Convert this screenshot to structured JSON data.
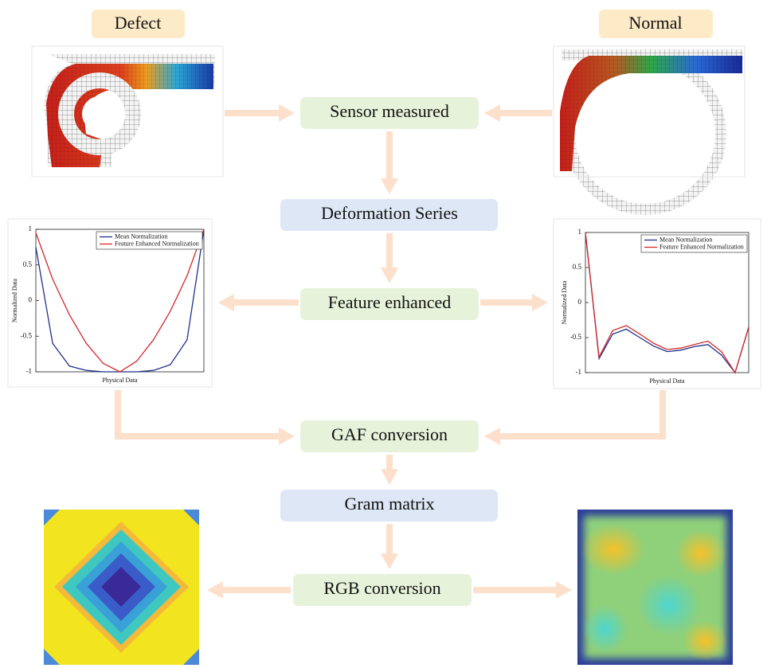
{
  "labels": {
    "defect": "Defect",
    "normal": "Normal"
  },
  "steps": [
    "Sensor measured",
    "Deformation Series",
    "Feature enhanced",
    "GAF conversion",
    "Gram matrix",
    "RGB conversion"
  ],
  "chart_data": [
    {
      "type": "line",
      "x_label": "Physical Data",
      "y_label": "Normalized Data",
      "ylim": [
        -1,
        1
      ],
      "yticks": [
        -1,
        -0.5,
        0,
        0.5,
        1
      ],
      "series": [
        {
          "name": "Mean Normalization",
          "color": "#1f2f8f",
          "values": [
            0.75,
            -0.6,
            -0.92,
            -0.98,
            -1,
            -1,
            -1,
            -0.98,
            -0.9,
            -0.55,
            1
          ]
        },
        {
          "name": "Feature Enhanced Normalization",
          "color": "#d42a2a",
          "values": [
            0.95,
            0.3,
            -0.2,
            -0.6,
            -0.88,
            -1,
            -0.85,
            -0.55,
            -0.15,
            0.35,
            1
          ]
        }
      ]
    },
    {
      "type": "line",
      "x_label": "Physical Data",
      "y_label": "Normalized Data",
      "ylim": [
        -1,
        1
      ],
      "yticks": [
        -1,
        -0.5,
        0,
        0.5,
        1
      ],
      "series": [
        {
          "name": "Mean Normalization",
          "color": "#1f2f8f",
          "values": [
            1,
            -0.8,
            -0.45,
            -0.38,
            -0.5,
            -0.62,
            -0.7,
            -0.68,
            -0.63,
            -0.6,
            -0.75,
            -1,
            -0.35
          ]
        },
        {
          "name": "Feature Enhanced Normalization",
          "color": "#d42a2a",
          "values": [
            1,
            -0.78,
            -0.4,
            -0.33,
            -0.45,
            -0.58,
            -0.67,
            -0.65,
            -0.6,
            -0.55,
            -0.7,
            -1,
            -0.35
          ]
        }
      ]
    }
  ]
}
